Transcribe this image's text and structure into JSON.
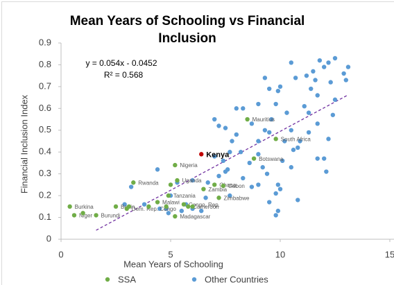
{
  "chart_data": {
    "type": "scatter",
    "title": "Mean Years of Schooling vs Financial Inclusion",
    "x_label": "Mean Years of Schooling",
    "y_label": "Financial Inclusion Index",
    "xlim": [
      0,
      15
    ],
    "xticks": [
      0,
      5,
      10,
      15
    ],
    "ylim": [
      0,
      0.9
    ],
    "yticks": [
      0,
      0.1,
      0.2,
      0.3,
      0.4,
      0.5,
      0.6,
      0.7,
      0.8,
      0.9
    ],
    "grid": false,
    "legend": "bottom",
    "annotations": [
      "y = 0.054x - 0.0452",
      "R² = 0.568"
    ],
    "trendline": {
      "slope": 0.054,
      "intercept": -0.0452,
      "color": "#7030a0"
    },
    "series": [
      {
        "name": "SSA",
        "color": "#70ad47",
        "highlight": {
          "index": 2,
          "color": "#c00000"
        },
        "x": [
          8.5,
          9.8,
          6.4,
          8.8,
          5.2,
          3.3,
          5.3,
          7.0,
          7.4,
          6.5,
          4.9,
          7.2,
          4.4,
          5.6,
          5.8,
          5.2,
          0.4,
          0.6,
          1.6,
          2.5,
          3.0,
          4.0,
          4.8,
          1.0,
          5.0,
          6.0,
          3.1
        ],
        "values": [
          0.55,
          0.46,
          0.39,
          0.37,
          0.34,
          0.26,
          0.27,
          0.25,
          0.245,
          0.23,
          0.2,
          0.19,
          0.17,
          0.16,
          0.15,
          0.105,
          0.15,
          0.11,
          0.11,
          0.15,
          0.14,
          0.15,
          0.15,
          0.12,
          0.25,
          0.15,
          0.15
        ],
        "labels": [
          "Mauritius",
          "South Africa",
          "Kenya",
          "Botswana",
          "Nigeria",
          "Rwanda",
          "Uganda",
          "Ghana",
          "Gabon",
          "Zambia",
          "Tanzania",
          "Zimbabwe",
          "Malawi",
          "Congo, Rep.",
          "Cameroon",
          "Madagascar",
          "Burkina",
          "Niger",
          "Burundi",
          "Benin",
          "Dem. Rep. Congo",
          null,
          null,
          null,
          null,
          null,
          null
        ]
      },
      {
        "name": "Other Countries",
        "color": "#5b9bd5",
        "x": [
          12.5,
          11.8,
          12.2,
          13.1,
          10.5,
          12.0,
          11.5,
          12.9,
          11.2,
          10.7,
          11.6,
          13.0,
          12.3,
          10.0,
          9.9,
          9.5,
          11.4,
          9.3,
          11.7,
          12.5,
          11.1,
          9.8,
          9.0,
          8.0,
          8.3,
          11.3,
          12.4,
          10.3,
          7.0,
          9.6,
          8.7,
          11.7,
          7.2,
          7.5,
          10.5,
          11.3,
          9.3,
          9.5,
          8.0,
          7.8,
          9.0,
          10.2,
          10.9,
          12.2,
          10.8,
          10.6,
          7.7,
          8.2,
          9.0,
          7.0,
          12.0,
          7.4,
          10.1,
          11.7,
          8.6,
          9.2,
          10.5,
          7.6,
          7.5,
          4.4,
          9.4,
          12.1,
          7.2,
          8.3,
          6.0,
          6.7,
          9.0,
          9.9,
          5.3,
          3.2,
          8.7,
          10.0,
          9.8,
          5.0,
          6.6,
          7.7,
          10.8,
          9.5,
          5.7,
          3.8,
          2.9,
          4.5,
          4.8,
          6.0,
          9.9,
          9.8,
          4.9,
          6.4,
          5.5
        ],
        "values": [
          0.83,
          0.82,
          0.81,
          0.79,
          0.81,
          0.79,
          0.77,
          0.76,
          0.75,
          0.74,
          0.73,
          0.73,
          0.72,
          0.7,
          0.68,
          0.69,
          0.69,
          0.74,
          0.66,
          0.64,
          0.61,
          0.62,
          0.62,
          0.6,
          0.6,
          0.58,
          0.57,
          0.58,
          0.55,
          0.55,
          0.53,
          0.53,
          0.52,
          0.51,
          0.5,
          0.49,
          0.5,
          0.49,
          0.48,
          0.45,
          0.45,
          0.45,
          0.45,
          0.46,
          0.42,
          0.41,
          0.4,
          0.4,
          0.39,
          0.38,
          0.37,
          0.36,
          0.36,
          0.37,
          0.35,
          0.33,
          0.33,
          0.32,
          0.31,
          0.32,
          0.3,
          0.31,
          0.29,
          0.28,
          0.27,
          0.26,
          0.25,
          0.25,
          0.26,
          0.24,
          0.24,
          0.23,
          0.21,
          0.2,
          0.19,
          0.2,
          0.18,
          0.17,
          0.16,
          0.16,
          0.16,
          0.14,
          0.14,
          0.14,
          0.13,
          0.11,
          0.12,
          0.13,
          0.13
        ]
      }
    ]
  }
}
